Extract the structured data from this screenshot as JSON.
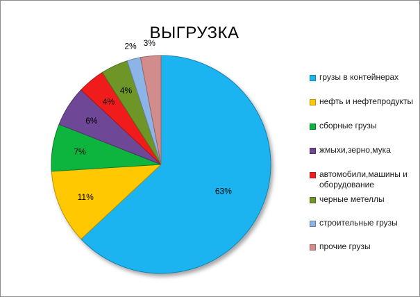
{
  "chart_data": {
    "type": "pie",
    "title": "ВЫГРУЗКА",
    "legend_position": "right",
    "data_labels_shown": true,
    "slices": [
      {
        "name": "грузы в контейнерах",
        "value": 63,
        "label": "63%",
        "color": "#1EB4F0"
      },
      {
        "name": "нефть и нефтепродукты",
        "value": 11,
        "label": "11%",
        "color": "#FFC800"
      },
      {
        "name": "сборные грузы",
        "value": 7,
        "label": "7%",
        "color": "#0AB43C"
      },
      {
        "name": "жмыхи,зерно,мука",
        "value": 6,
        "label": "6%",
        "color": "#6E4696"
      },
      {
        "name": "автомобили,машины и оборудование",
        "value": 4,
        "label": "4%",
        "color": "#F01E1E"
      },
      {
        "name": "черные метеллы",
        "value": 4,
        "label": "4%",
        "color": "#6E9628"
      },
      {
        "name": "строительные грузы",
        "value": 2,
        "label": "2%",
        "color": "#8CB4E6"
      },
      {
        "name": "прочие грузы",
        "value": 3,
        "label": "3%",
        "color": "#D28C8C"
      }
    ]
  }
}
